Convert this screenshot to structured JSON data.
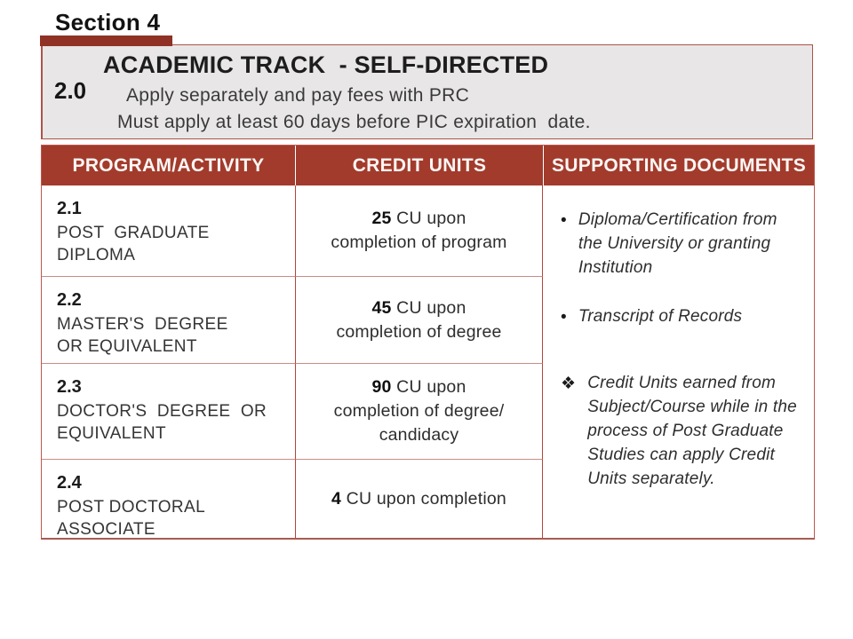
{
  "section_label": "Section 4",
  "header": {
    "number": "2.0",
    "title": "ACADEMIC TRACK  - SELF-DIRECTED",
    "line1": "Apply separately and pay fees with PRC",
    "line2": "Must apply at least 60 days before PIC expiration  date."
  },
  "table": {
    "columns": [
      "PROGRAM/ACTIVITY",
      "CREDIT UNITS",
      "SUPPORTING DOCUMENTS"
    ],
    "rows": [
      {
        "number": "2.1",
        "program": "POST  GRADUATE\nDIPLOMA",
        "cu_value": "25",
        "cu_text": " CU upon\ncompletion of program"
      },
      {
        "number": "2.2",
        "program": "MASTER'S  DEGREE\nOR EQUIVALENT",
        "cu_value": "45",
        "cu_text": " CU upon\ncompletion of degree"
      },
      {
        "number": "2.3",
        "program": "DOCTOR'S  DEGREE  OR\nEQUIVALENT",
        "cu_value": "90",
        "cu_text": " CU upon\ncompletion of degree/\ncandidacy"
      },
      {
        "number": "2.4",
        "program": "POST DOCTORAL\nASSOCIATE",
        "cu_value": "4",
        "cu_text": " CU upon completion"
      }
    ],
    "supporting_documents": [
      {
        "bullet": "•",
        "text": "Diploma/Certification from the University or granting Institution"
      },
      {
        "bullet": "•",
        "text": "Transcript of Records"
      },
      {
        "bullet": "❖",
        "text": "Credit Units earned from Subject/Course while in the process of Post Graduate Studies can apply Credit Units separately."
      }
    ]
  },
  "colors": {
    "header_red": "#A23B2C",
    "section_bar_red": "#8F3125",
    "box_background": "#E8E6E6",
    "border_red": "#B2453A",
    "row_line_pink": "#C98C84"
  }
}
